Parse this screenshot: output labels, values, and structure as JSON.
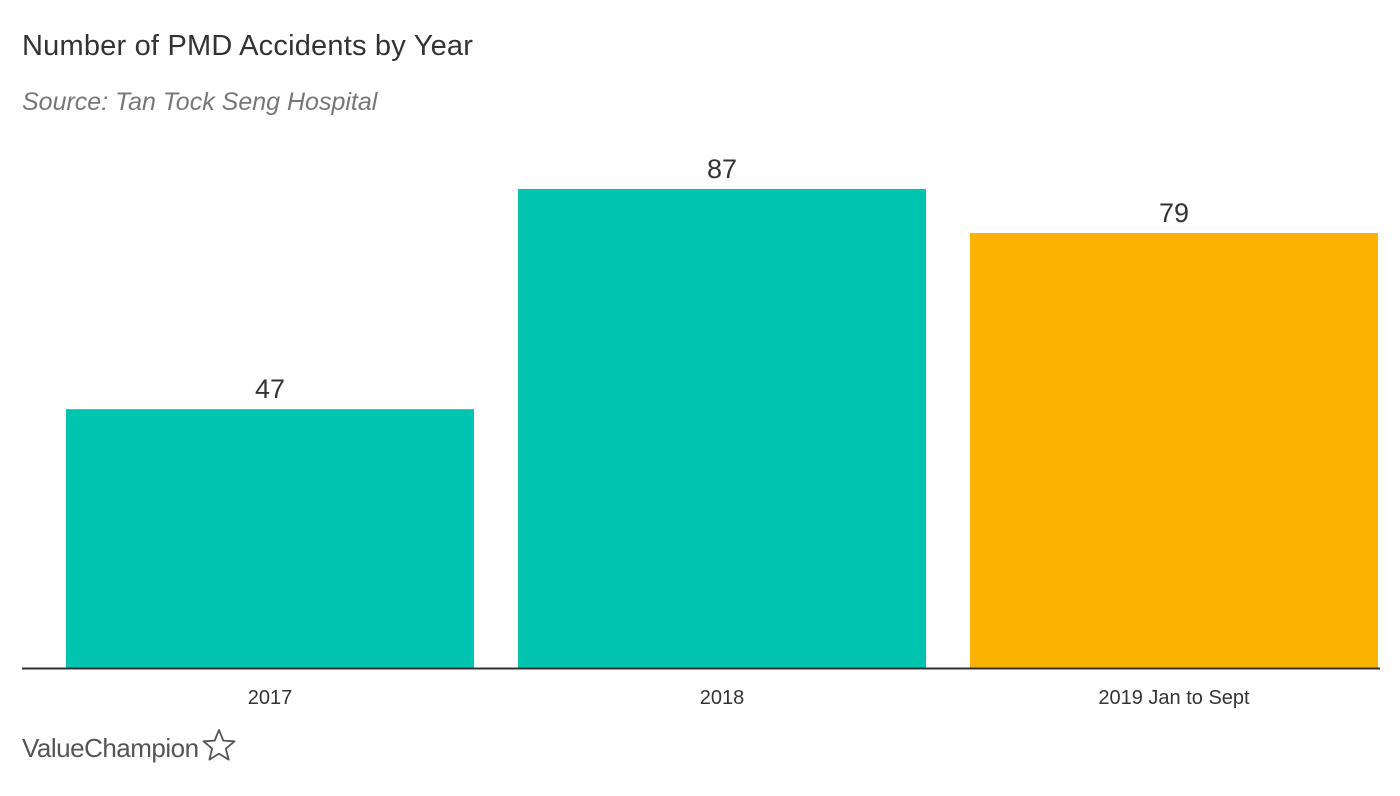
{
  "chart_data": {
    "type": "bar",
    "title": "Number of PMD Accidents by Year",
    "subtitle": "Source: Tan Tock Seng Hospital",
    "categories": [
      "2017",
      "2018",
      "2019 Jan to Sept"
    ],
    "values": [
      47,
      87,
      79
    ],
    "bar_colors": [
      "#00c3b0",
      "#00c3b0",
      "#f9b300"
    ],
    "xlabel": "",
    "ylabel": "",
    "ylim": [
      0,
      87
    ],
    "grid": false,
    "legend": "none"
  },
  "brand": {
    "name": "ValueChampion",
    "icon": "star-outline-icon",
    "color": "#555555"
  }
}
